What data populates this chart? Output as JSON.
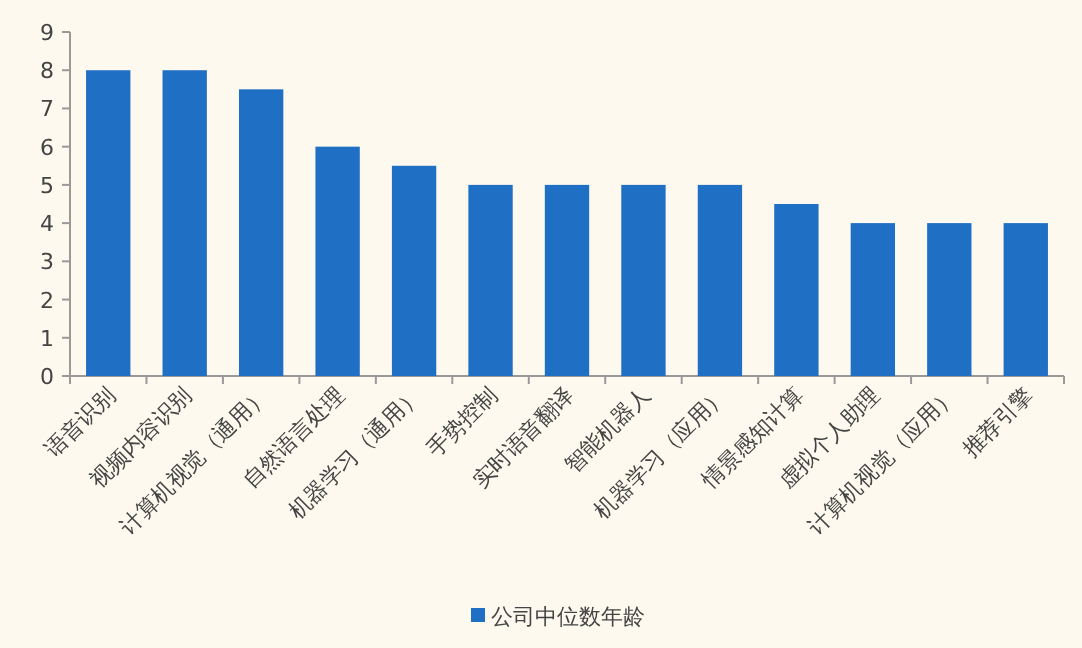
{
  "chart_data": {
    "type": "bar",
    "categories": [
      "语音识别",
      "视频内容识别",
      "计算机视觉（通用）",
      "自然语言处理",
      "机器学习（通用）",
      "手势控制",
      "实时语音翻译",
      "智能机器人",
      "机器学习（应用）",
      "情景感知计算",
      "虚拟个人助理",
      "计算机视觉（应用）",
      "推荐引擎"
    ],
    "series": [
      {
        "name": "公司中位数年龄",
        "color": "#1f6fc5",
        "values": [
          8,
          8,
          7.5,
          6,
          5.5,
          5,
          5,
          5,
          5,
          4.5,
          4,
          4,
          4
        ]
      }
    ],
    "ylim": [
      0,
      9
    ],
    "yticks": [
      0,
      1,
      2,
      3,
      4,
      5,
      6,
      7,
      8,
      9
    ],
    "legend": "bottom"
  }
}
